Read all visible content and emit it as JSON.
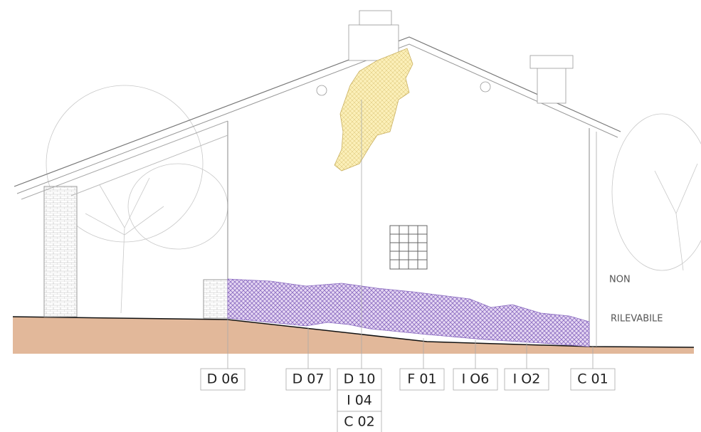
{
  "markers": [
    [
      "D 06"
    ],
    [
      "D 07"
    ],
    [
      "D 10",
      "I 04",
      "C 02"
    ],
    [
      "F 01"
    ],
    [
      "I O6"
    ],
    [
      "I O2"
    ],
    [
      "C 01"
    ]
  ],
  "note": {
    "line1": "NON",
    "line2": "RILEVABILE"
  }
}
